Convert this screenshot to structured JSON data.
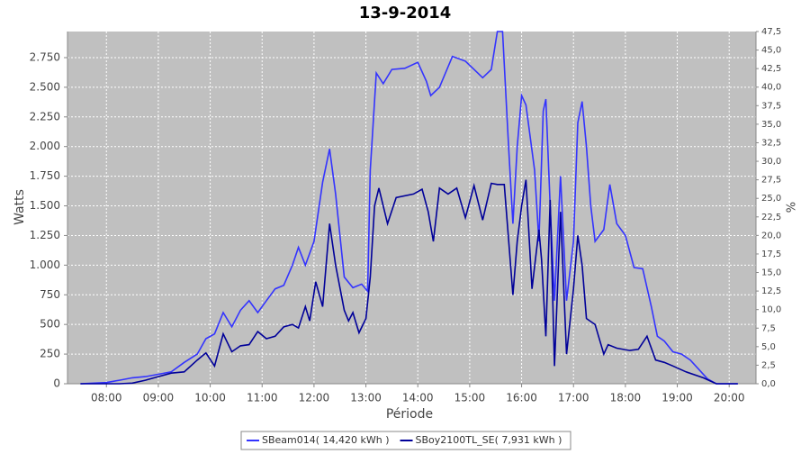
{
  "chart_data": {
    "type": "line",
    "title": "13-9-2014",
    "xlabel": "Période",
    "ylabel": "Watts",
    "y2label": "%",
    "xlim": [
      "07:15",
      "20:31"
    ],
    "xticks": [
      "08:00",
      "09:00",
      "10:00",
      "11:00",
      "12:00",
      "13:00",
      "14:00",
      "15:00",
      "16:00",
      "17:00",
      "18:00",
      "19:00",
      "20:00"
    ],
    "ylim": [
      0,
      2970
    ],
    "yticks": [
      0,
      250,
      500,
      750,
      {
        "value": 1000,
        "label": "1.000"
      },
      {
        "value": 1250,
        "label": "1.250"
      },
      {
        "value": 1500,
        "label": "1.500"
      },
      {
        "value": 1750,
        "label": "1.750"
      },
      {
        "value": 2000,
        "label": "2.000"
      },
      {
        "value": 2250,
        "label": "2.250"
      },
      {
        "value": 2500,
        "label": "2.500"
      },
      {
        "value": 2750,
        "label": "2.750"
      }
    ],
    "y2lim": [
      0,
      47.5
    ],
    "y2ticks": [
      {
        "value": 0,
        "label": "0,0"
      },
      {
        "value": 2.5,
        "label": "2,5"
      },
      {
        "value": 5,
        "label": "5,0"
      },
      {
        "value": 7.5,
        "label": "7,5"
      },
      {
        "value": 10,
        "label": "10,0"
      },
      {
        "value": 12.5,
        "label": "12,5"
      },
      {
        "value": 15,
        "label": "15,0"
      },
      {
        "value": 17.5,
        "label": "17,5"
      },
      {
        "value": 20,
        "label": "20,0"
      },
      {
        "value": 22.5,
        "label": "22,5"
      },
      {
        "value": 25,
        "label": "25,0"
      },
      {
        "value": 27.5,
        "label": "27,5"
      },
      {
        "value": 30,
        "label": "30,0"
      },
      {
        "value": 32.5,
        "label": "32,5"
      },
      {
        "value": 35,
        "label": "35,0"
      },
      {
        "value": 37.5,
        "label": "37,5"
      },
      {
        "value": 40,
        "label": "40,0"
      },
      {
        "value": 42.5,
        "label": "42,5"
      },
      {
        "value": 45,
        "label": "45,0"
      },
      {
        "value": 47.5,
        "label": "47,5"
      }
    ],
    "grid": true,
    "legend": "bottom",
    "series": [
      {
        "name": "SBeam014( 14,420 kWh )",
        "color": "#3333ff",
        "x": [
          "07:30",
          "08:00",
          "08:15",
          "08:30",
          "08:45",
          "09:00",
          "09:15",
          "09:30",
          "09:45",
          "09:55",
          "10:05",
          "10:15",
          "10:25",
          "10:35",
          "10:45",
          "10:55",
          "11:05",
          "11:15",
          "11:25",
          "11:35",
          "11:42",
          "11:50",
          "12:00",
          "12:10",
          "12:18",
          "12:25",
          "12:35",
          "12:45",
          "12:55",
          "13:02",
          "13:05",
          "13:12",
          "13:20",
          "13:30",
          "13:45",
          "14:00",
          "14:10",
          "14:15",
          "14:25",
          "14:40",
          "14:55",
          "15:05",
          "15:15",
          "15:25",
          "15:32",
          "15:38",
          "15:45",
          "15:50",
          "15:55",
          "16:00",
          "16:05",
          "16:15",
          "16:20",
          "16:25",
          "16:28",
          "16:33",
          "16:38",
          "16:45",
          "16:52",
          "17:00",
          "17:05",
          "17:10",
          "17:15",
          "17:20",
          "17:25",
          "17:35",
          "17:42",
          "17:50",
          "18:00",
          "18:10",
          "18:20",
          "18:30",
          "18:37",
          "18:45",
          "18:55",
          "19:05",
          "19:15",
          "19:25",
          "19:35",
          "19:45",
          "20:10"
        ],
        "values": [
          0,
          10,
          30,
          50,
          60,
          80,
          100,
          180,
          250,
          380,
          420,
          600,
          480,
          620,
          700,
          600,
          700,
          800,
          830,
          1000,
          1150,
          1000,
          1200,
          1700,
          1980,
          1600,
          900,
          810,
          840,
          780,
          1800,
          2620,
          2530,
          2650,
          2660,
          2710,
          2550,
          2430,
          2500,
          2760,
          2720,
          2650,
          2580,
          2650,
          2970,
          2970,
          2000,
          1350,
          2000,
          2430,
          2350,
          1800,
          1200,
          2300,
          2400,
          1500,
          700,
          1750,
          700,
          1200,
          2200,
          2380,
          2000,
          1500,
          1200,
          1300,
          1680,
          1350,
          1250,
          980,
          970,
          650,
          400,
          360,
          270,
          250,
          200,
          120,
          40,
          0,
          0
        ]
      },
      {
        "name": "SBoy2100TL_SE( 7,931 kWh )",
        "color": "#000099",
        "x": [
          "07:30",
          "08:15",
          "08:30",
          "08:45",
          "09:00",
          "09:15",
          "09:30",
          "09:45",
          "09:55",
          "10:05",
          "10:15",
          "10:25",
          "10:35",
          "10:45",
          "10:55",
          "11:05",
          "11:15",
          "11:25",
          "11:35",
          "11:42",
          "11:50",
          "11:55",
          "12:02",
          "12:10",
          "12:18",
          "12:25",
          "12:35",
          "12:40",
          "12:45",
          "12:52",
          "13:00",
          "13:05",
          "13:10",
          "13:15",
          "13:25",
          "13:35",
          "13:55",
          "14:05",
          "14:12",
          "14:18",
          "14:25",
          "14:35",
          "14:45",
          "14:55",
          "15:05",
          "15:15",
          "15:25",
          "15:32",
          "15:40",
          "15:50",
          "15:55",
          "16:00",
          "16:05",
          "16:12",
          "16:20",
          "16:23",
          "16:28",
          "16:33",
          "16:38",
          "16:45",
          "16:52",
          "17:00",
          "17:05",
          "17:10",
          "17:15",
          "17:25",
          "17:35",
          "17:40",
          "17:50",
          "18:05",
          "18:15",
          "18:25",
          "18:35",
          "18:45",
          "18:55",
          "19:10",
          "19:30",
          "19:45",
          "20:10"
        ],
        "values": [
          0,
          0,
          5,
          30,
          60,
          90,
          100,
          200,
          260,
          150,
          420,
          270,
          320,
          330,
          440,
          380,
          400,
          480,
          500,
          470,
          650,
          530,
          860,
          650,
          1350,
          1000,
          620,
          530,
          600,
          430,
          550,
          900,
          1500,
          1650,
          1350,
          1570,
          1600,
          1640,
          1450,
          1200,
          1650,
          1600,
          1650,
          1400,
          1670,
          1380,
          1690,
          1680,
          1680,
          750,
          1200,
          1500,
          1720,
          800,
          1300,
          1050,
          400,
          1550,
          150,
          1450,
          250,
          800,
          1250,
          1000,
          550,
          500,
          250,
          330,
          300,
          280,
          290,
          400,
          200,
          180,
          150,
          100,
          50,
          0,
          0
        ]
      }
    ]
  }
}
